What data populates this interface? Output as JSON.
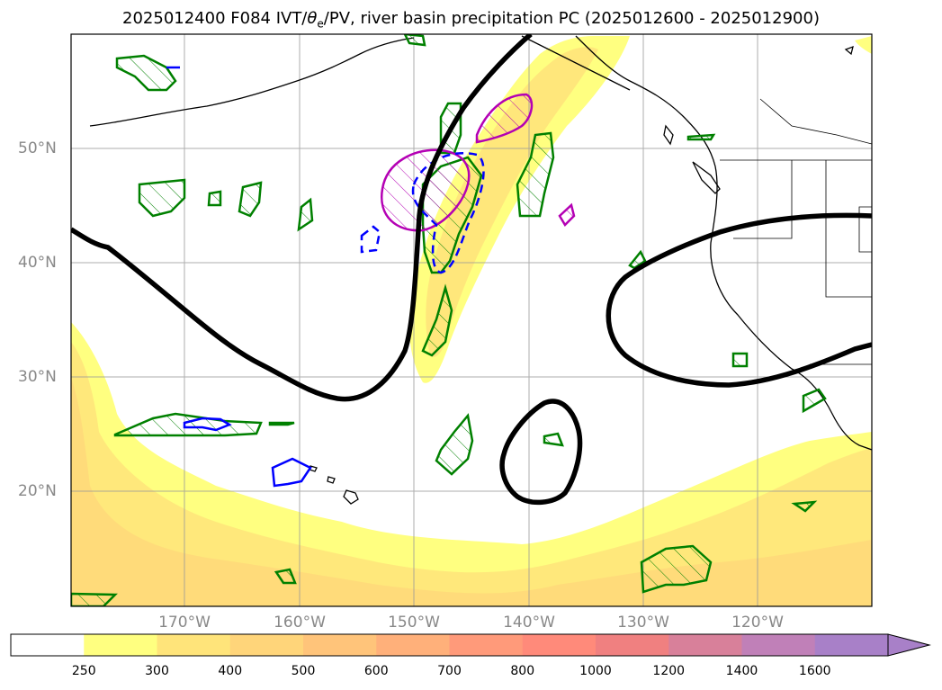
{
  "title": {
    "prefix": "2025012400 F084 IVT/",
    "theta": "θ",
    "theta_sub": "e",
    "suffix": "/PV, river basin precipitation PC (2025012600 - 2025012900)"
  },
  "axes": {
    "lat_labels": [
      "50°N",
      "40°N",
      "30°N",
      "20°N"
    ],
    "lon_labels": [
      "170°W",
      "160°W",
      "150°W",
      "140°W",
      "130°W",
      "120°W"
    ]
  },
  "colorbar": {
    "ticks": [
      "250",
      "300",
      "400",
      "500",
      "600",
      "700",
      "800",
      "1000",
      "1200",
      "1400",
      "1600"
    ],
    "colors": [
      "#ffff80",
      "#ffe47a",
      "#ffd57a",
      "#ffc47a",
      "#ffb07a",
      "#ff9a7a",
      "#ff8a7a",
      "#f08080",
      "#d8809a",
      "#c080b8",
      "#a880c8"
    ],
    "extend": "max"
  },
  "legend_colors": {
    "ivt_fill_low": "#ffff80",
    "ivt_fill_high": "#ffd57a",
    "theta_e_contour": "#008000",
    "pv_contour": "#0000ff",
    "precip_contour": "#b400b4",
    "jet_contour": "#000000",
    "coastline": "#000000"
  }
}
